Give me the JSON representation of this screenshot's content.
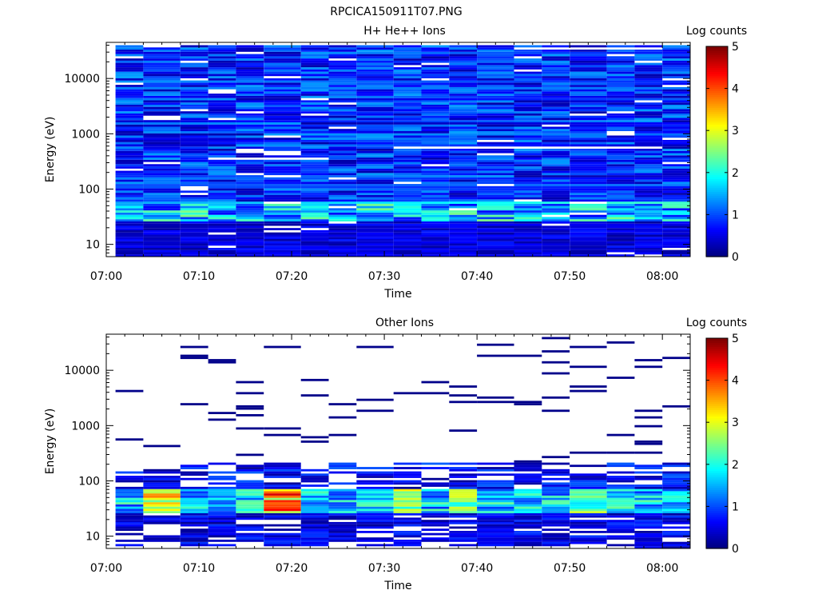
{
  "figure_title": "RPCICA150911T07.PNG",
  "colormap": "jet",
  "chart_data": [
    {
      "type": "heatmap",
      "title": "H+ He++ Ions",
      "xlabel": "Time",
      "ylabel": "Energy (eV)",
      "x_scale": "time",
      "y_scale": "log",
      "xlim": [
        "07:00",
        "08:03"
      ],
      "ylim": [
        6,
        45000
      ],
      "x_ticks": [
        "07:00",
        "07:10",
        "07:20",
        "07:30",
        "07:40",
        "07:50",
        "08:00"
      ],
      "y_ticks": [
        "10",
        "100",
        "1000",
        "10000"
      ],
      "colorbar": {
        "label": "Log counts",
        "range": [
          0,
          5
        ],
        "ticks": [
          "0",
          "1",
          "2",
          "3",
          "4",
          "5"
        ]
      },
      "time_bins": [
        {
          "start": "07:01",
          "end": "07:04"
        },
        {
          "start": "07:04",
          "end": "07:08"
        },
        {
          "start": "07:08",
          "end": "07:11"
        },
        {
          "start": "07:11",
          "end": "07:14"
        },
        {
          "start": "07:14",
          "end": "07:17"
        },
        {
          "start": "07:17",
          "end": "07:21"
        },
        {
          "start": "07:21",
          "end": "07:24"
        },
        {
          "start": "07:24",
          "end": "07:27"
        },
        {
          "start": "07:27",
          "end": "07:31"
        },
        {
          "start": "07:31",
          "end": "07:34"
        },
        {
          "start": "07:34",
          "end": "07:37"
        },
        {
          "start": "07:37",
          "end": "07:40"
        },
        {
          "start": "07:40",
          "end": "07:44"
        },
        {
          "start": "07:44",
          "end": "07:47"
        },
        {
          "start": "07:47",
          "end": "07:50"
        },
        {
          "start": "07:50",
          "end": "07:54"
        },
        {
          "start": "07:54",
          "end": "07:57"
        },
        {
          "start": "07:57",
          "end": "08:00"
        },
        {
          "start": "08:00",
          "end": "08:03"
        }
      ],
      "energy_range": [
        6,
        40000
      ],
      "energy_channels": 96,
      "features": [
        {
          "energy_range": [
            25,
            60
          ],
          "log_counts_peak": 2.6,
          "note": "enhanced band near 30-50 eV"
        },
        {
          "energy_range": [
            60,
            40000
          ],
          "log_counts_typical": 0.8
        },
        {
          "energy_range": [
            6,
            25
          ],
          "log_counts_typical": 0.3
        }
      ]
    },
    {
      "type": "heatmap",
      "title": "Other Ions",
      "xlabel": "Time",
      "ylabel": "Energy (eV)",
      "x_scale": "time",
      "y_scale": "log",
      "xlim": [
        "07:00",
        "08:03"
      ],
      "ylim": [
        6,
        45000
      ],
      "x_ticks": [
        "07:00",
        "07:10",
        "07:20",
        "07:30",
        "07:40",
        "07:50",
        "08:00"
      ],
      "y_ticks": [
        "10",
        "100",
        "1000",
        "10000"
      ],
      "colorbar": {
        "label": "Log counts",
        "range": [
          0,
          5
        ],
        "ticks": [
          "0",
          "1",
          "2",
          "3",
          "4",
          "5"
        ]
      },
      "energy_channels": 96,
      "features": [
        {
          "energy_range": [
            30,
            70
          ],
          "log_counts_peak": 4.6,
          "time": "07:19",
          "note": "strongest signal"
        },
        {
          "energy_range": [
            30,
            70
          ],
          "log_counts_peak": 4.2,
          "time": "07:06"
        },
        {
          "energy_range": [
            30,
            70
          ],
          "log_counts_peak": 3.3,
          "time": "07:32"
        },
        {
          "energy_range": [
            30,
            70
          ],
          "log_counts_peak": 3.2,
          "time": "07:39"
        },
        {
          "energy_range": [
            30,
            70
          ],
          "log_counts_peak": 3.0,
          "time": "07:52"
        },
        {
          "energy_range": [
            300,
            40000
          ],
          "note": "sparse single-count lines",
          "log_counts": 0.1
        }
      ]
    }
  ]
}
